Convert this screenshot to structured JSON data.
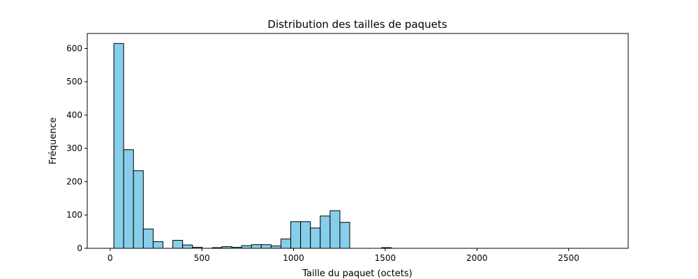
{
  "chart_data": {
    "type": "bar",
    "title": "Distribution des tailles de paquets",
    "xlabel": "Taille du paquet (octets)",
    "ylabel": "Fréquence",
    "xlim": [
      -125,
      2825
    ],
    "ylim": [
      0,
      645
    ],
    "xticks": [
      0,
      500,
      1000,
      1500,
      2000,
      2500
    ],
    "yticks": [
      0,
      100,
      200,
      300,
      400,
      500,
      600
    ],
    "bin_start": 20,
    "bin_width": 53.6,
    "values": [
      615,
      296,
      233,
      58,
      20,
      0,
      24,
      10,
      3,
      0,
      2,
      5,
      3,
      8,
      11,
      11,
      7,
      28,
      80,
      80,
      61,
      97,
      113,
      78,
      0,
      0,
      0,
      0,
      0,
      0,
      0,
      0,
      0,
      0,
      0,
      0,
      0,
      0,
      0,
      0,
      0,
      0,
      0,
      0,
      0,
      0,
      0,
      0,
      0,
      0
    ],
    "extra_bars": [
      {
        "x_start": 1480,
        "x_end": 1533,
        "value": 2
      }
    ],
    "grid": false,
    "legend": "none",
    "bar_color": "#87ceeb",
    "edge_color": "#000000"
  }
}
